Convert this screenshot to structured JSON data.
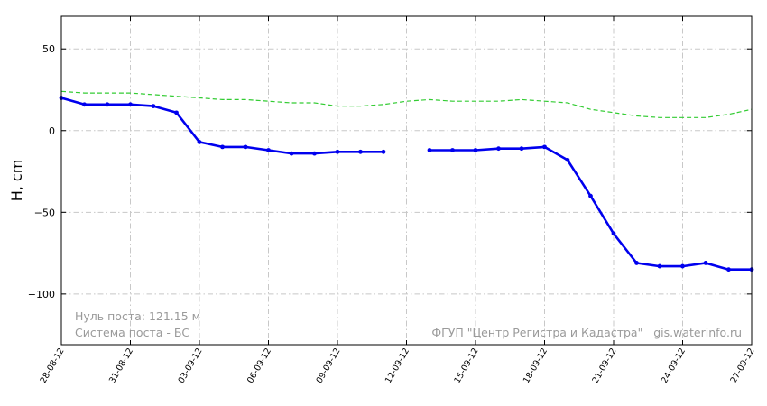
{
  "chart_data": {
    "type": "line",
    "ylabel": "H, cm",
    "ylim": [
      -131,
      70
    ],
    "yticks": [
      -100,
      -50,
      0,
      50
    ],
    "ytick_labels": [
      "−100",
      "−50",
      "0",
      "50"
    ],
    "xlim": [
      "28-08-12",
      "27-09-12"
    ],
    "xtick_labels": [
      "28-08-12",
      "31-08-12",
      "03-09-12",
      "06-09-12",
      "09-09-12",
      "12-09-12",
      "15-09-12",
      "18-09-12",
      "21-09-12",
      "24-09-12",
      "27-09-12"
    ],
    "grid": true,
    "series": [
      {
        "color": "#0000ee",
        "style": "solid-markers",
        "x": [
          "28-08-12",
          "29-08-12",
          "30-08-12",
          "31-08-12",
          "01-09-12",
          "02-09-12",
          "03-09-12",
          "04-09-12",
          "05-09-12",
          "06-09-12",
          "07-09-12",
          "08-09-12",
          "09-09-12",
          "10-09-12",
          "11-09-12",
          "12-09-12",
          "13-09-12",
          "14-09-12",
          "15-09-12",
          "16-09-12",
          "17-09-12",
          "18-09-12",
          "19-09-12",
          "20-09-12",
          "21-09-12",
          "22-09-12",
          "23-09-12",
          "24-09-12",
          "25-09-12",
          "26-09-12",
          "27-09-12"
        ],
        "y": [
          20,
          16,
          16,
          16,
          15,
          11,
          -7,
          -10,
          -10,
          -12,
          -14,
          -14,
          -13,
          -13,
          -13,
          null,
          -12,
          -12,
          -12,
          -11,
          -11,
          -10,
          -18,
          -40,
          -63,
          -81,
          -83,
          -83,
          -81,
          -85,
          -85
        ]
      },
      {
        "color": "#33cc33",
        "style": "dashed",
        "x": [
          "28-08-12",
          "29-08-12",
          "30-08-12",
          "31-08-12",
          "01-09-12",
          "02-09-12",
          "03-09-12",
          "04-09-12",
          "05-09-12",
          "06-09-12",
          "07-09-12",
          "08-09-12",
          "09-09-12",
          "10-09-12",
          "11-09-12",
          "12-09-12",
          "13-09-12",
          "14-09-12",
          "15-09-12",
          "16-09-12",
          "17-09-12",
          "18-09-12",
          "19-09-12",
          "20-09-12",
          "21-09-12",
          "22-09-12",
          "23-09-12",
          "24-09-12",
          "25-09-12",
          "26-09-12",
          "27-09-12"
        ],
        "y": [
          24,
          23,
          23,
          23,
          22,
          21,
          20,
          19,
          19,
          18,
          17,
          17,
          15,
          15,
          16,
          18,
          19,
          18,
          18,
          18,
          19,
          18,
          17,
          13,
          11,
          9,
          8,
          8,
          8,
          10,
          13
        ]
      }
    ],
    "annotations": {
      "zero_line": "Нуль поста: 121.15 м",
      "system": "Система поста - БС",
      "credit": "ФГУП \"Центр Регистра и Кадастра\"   gis.waterinfo.ru"
    }
  }
}
